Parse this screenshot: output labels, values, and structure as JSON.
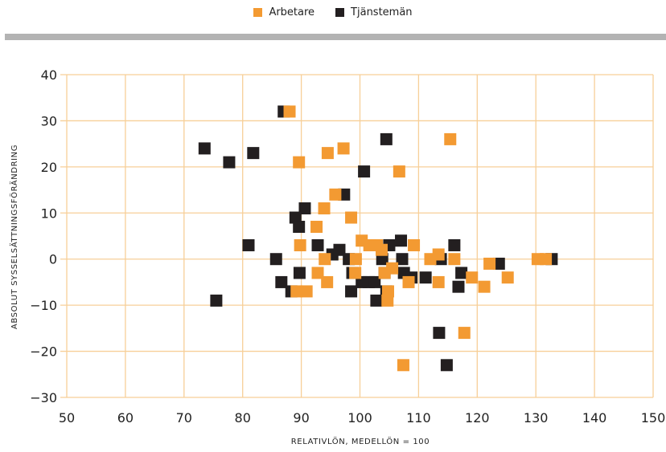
{
  "chart_data": {
    "type": "scatter",
    "xlabel": "RELATIVLÖN, MEDELLÖN = 100",
    "ylabel": "ABSOLUT SYSSELSÄTTNINGSFÖRÄNDRING",
    "xlim": [
      50,
      150
    ],
    "ylim": [
      -30,
      40
    ],
    "xticks": [
      50,
      60,
      70,
      80,
      90,
      100,
      110,
      120,
      130,
      140,
      150
    ],
    "yticks": [
      40,
      30,
      20,
      10,
      0,
      -10,
      -20,
      -30
    ],
    "ytick_labels": [
      "40",
      "30",
      "20",
      "10",
      "0",
      "−10",
      "−20",
      "−30"
    ],
    "grid": true,
    "legend_position": "top-center",
    "series": [
      {
        "name": "Tjänstemän",
        "color": "#231f20",
        "points": [
          [
            87,
            32
          ],
          [
            73.5,
            24
          ],
          [
            77.7,
            21
          ],
          [
            81.8,
            23
          ],
          [
            104.5,
            26
          ],
          [
            100.7,
            19
          ],
          [
            97.3,
            14
          ],
          [
            90.6,
            11
          ],
          [
            89,
            9
          ],
          [
            89.6,
            7
          ],
          [
            81,
            3
          ],
          [
            85.7,
            0
          ],
          [
            86.6,
            -5
          ],
          [
            88.3,
            -7
          ],
          [
            89.7,
            -3
          ],
          [
            92.8,
            3
          ],
          [
            95.3,
            1
          ],
          [
            96.5,
            2
          ],
          [
            98.1,
            0
          ],
          [
            98.5,
            -7
          ],
          [
            98.7,
            -3
          ],
          [
            100.3,
            -5
          ],
          [
            101.5,
            -5
          ],
          [
            102.5,
            -5
          ],
          [
            103.8,
            0
          ],
          [
            104.2,
            -3
          ],
          [
            105,
            3
          ],
          [
            107,
            4
          ],
          [
            107.2,
            0
          ],
          [
            107.5,
            -3
          ],
          [
            108.8,
            -4
          ],
          [
            111.2,
            -4
          ],
          [
            113.5,
            -16
          ],
          [
            113.8,
            0
          ],
          [
            114.8,
            -23
          ],
          [
            116.1,
            3
          ],
          [
            117.3,
            -3
          ],
          [
            116.8,
            -6
          ],
          [
            123.7,
            -1
          ],
          [
            132.7,
            0
          ],
          [
            102.8,
            -9
          ],
          [
            75.5,
            -9
          ],
          [
            104.5,
            -7
          ]
        ]
      },
      {
        "name": "Arbetare",
        "color": "#f39a32",
        "points": [
          [
            88,
            32
          ],
          [
            89.6,
            21
          ],
          [
            94.5,
            23
          ],
          [
            97.2,
            24
          ],
          [
            115.4,
            26
          ],
          [
            106.7,
            19
          ],
          [
            95.8,
            14
          ],
          [
            93.9,
            11
          ],
          [
            98.5,
            9
          ],
          [
            92.6,
            7
          ],
          [
            89.8,
            3
          ],
          [
            94,
            0
          ],
          [
            92.8,
            -3
          ],
          [
            94.4,
            -5
          ],
          [
            89.2,
            -7
          ],
          [
            90.9,
            -7
          ],
          [
            99.2,
            -3
          ],
          [
            99.3,
            0
          ],
          [
            100.3,
            4
          ],
          [
            101.6,
            3
          ],
          [
            102.9,
            3
          ],
          [
            103.7,
            2
          ],
          [
            104.2,
            -3
          ],
          [
            104.7,
            -9
          ],
          [
            104.8,
            -7
          ],
          [
            105.5,
            -2
          ],
          [
            107.4,
            -23
          ],
          [
            108.3,
            -5
          ],
          [
            109.2,
            3
          ],
          [
            112,
            0
          ],
          [
            113.4,
            1
          ],
          [
            113.4,
            -5
          ],
          [
            116.1,
            0
          ],
          [
            117.8,
            -16
          ],
          [
            119.1,
            -4
          ],
          [
            121.2,
            -6
          ],
          [
            122.1,
            -1
          ],
          [
            125.2,
            -4
          ],
          [
            130.3,
            0
          ],
          [
            131.7,
            0
          ]
        ]
      }
    ]
  }
}
